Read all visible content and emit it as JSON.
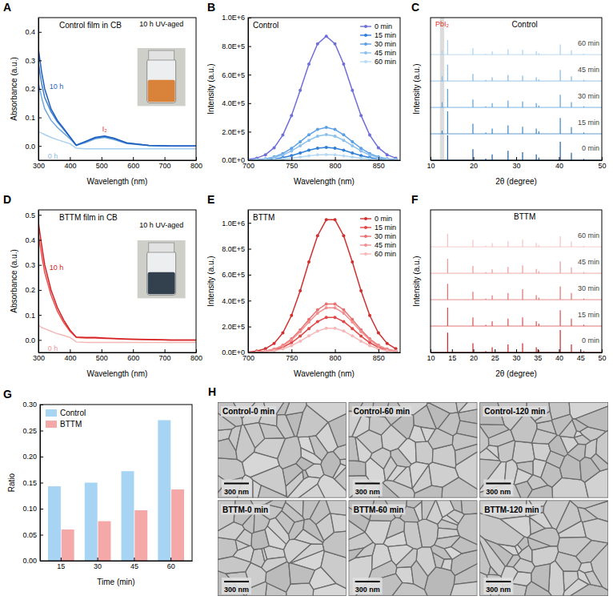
{
  "chart_data": [
    {
      "panel": "A",
      "type": "line",
      "title": "Control film in CB",
      "x_label": "Wavelength (nm)",
      "y_label": "Absorbance (a.u.)",
      "x": [
        300,
        310,
        320,
        340,
        360,
        380,
        400,
        420,
        450,
        480,
        510,
        540,
        580,
        650,
        720,
        800
      ],
      "xlim": [
        300,
        800
      ],
      "xticks": [
        300,
        400,
        500,
        600,
        700,
        800
      ],
      "ylim": [
        -0.05,
        0.45
      ],
      "yticks": [
        {
          "value": 0,
          "label": "0.0"
        },
        0.1,
        0.2,
        0.3,
        0.4
      ],
      "series": [
        {
          "color": "#a9cfee",
          "values": [
            0.05,
            0.045,
            0.04,
            0.03,
            0.022,
            0.015,
            0.008,
            -0.008,
            -0.01,
            -0.01,
            -0.01,
            -0.01,
            -0.01,
            -0.01,
            -0.01,
            -0.01
          ]
        },
        {
          "color": "#6fa8dc",
          "values": [
            0.22,
            0.17,
            0.13,
            0.09,
            0.065,
            0.045,
            0.025,
            0.002,
            0.012,
            0.025,
            0.03,
            0.022,
            0.008,
            0.001,
            0,
            0
          ]
        },
        {
          "color": "#3d7fd0",
          "values": [
            0.29,
            0.22,
            0.17,
            0.12,
            0.085,
            0.058,
            0.03,
            0.002,
            0.015,
            0.028,
            0.033,
            0.025,
            0.01,
            0.002,
            0,
            0
          ]
        },
        {
          "color": "#1f5fbf",
          "values": [
            0.34,
            0.26,
            0.2,
            0.13,
            0.09,
            0.062,
            0.032,
            0.003,
            0.016,
            0.03,
            0.035,
            0.027,
            0.011,
            0.002,
            0,
            0
          ]
        }
      ],
      "annotations": [
        {
          "text": "10 h",
          "x": 335,
          "y": 0.2,
          "color": "#1f5fbf"
        },
        {
          "text": "0 h",
          "x": 330,
          "y": -0.045,
          "color": "#8fbde6"
        },
        {
          "text": "I₂",
          "x": 510,
          "y": 0.05,
          "color": "#e03030"
        },
        {
          "text": "10 h UV-aged",
          "x": 690,
          "y": 0.42,
          "color": "#000000"
        }
      ]
    },
    {
      "panel": "B",
      "type": "line",
      "title": "Control",
      "x_label": "Wavelength (nm)",
      "y_label": "Intensity (a.u.)",
      "x": [
        700,
        710,
        720,
        730,
        740,
        750,
        760,
        770,
        780,
        790,
        800,
        810,
        820,
        830,
        840,
        850,
        860,
        870
      ],
      "xlim": [
        700,
        875
      ],
      "xticks": [
        700,
        750,
        800,
        850
      ],
      "ylim": [
        0,
        1000000
      ],
      "yticks": [
        {
          "value": 0,
          "label": "0.0E+0"
        },
        {
          "value": 200000,
          "label": "2.0E+5"
        },
        {
          "value": 400000,
          "label": "4.0E+5"
        },
        {
          "value": 600000,
          "label": "6.0E+5"
        },
        {
          "value": 800000,
          "label": "8.0E+5"
        },
        {
          "value": 1000000,
          "label": "1.0E+6"
        }
      ],
      "marker": "circle",
      "legend": "upper right",
      "series": [
        {
          "name": "0 min",
          "color": "#6f6fd8",
          "values": [
            5000,
            14700,
            38300,
            87600,
            176600,
            313600,
            489800,
            674300,
            816100,
            870000,
            816100,
            674300,
            489800,
            313600,
            176600,
            87600,
            38300,
            14700
          ]
        },
        {
          "name": "15 min",
          "color": "#2f7fd8",
          "values": [
            500,
            1500,
            4000,
            9100,
            18300,
            32400,
            50700,
            69800,
            84400,
            90000,
            84400,
            69800,
            50700,
            32400,
            18300,
            9100,
            4000,
            1500
          ]
        },
        {
          "name": "30 min",
          "color": "#5aa0e6",
          "values": [
            1300,
            3900,
            10100,
            23200,
            46700,
            82900,
            129500,
            178300,
            215700,
            230000,
            215700,
            178300,
            129500,
            82900,
            46700,
            23200,
            10100,
            3900
          ]
        },
        {
          "name": "45 min",
          "color": "#8cc0ee",
          "values": [
            1000,
            3000,
            7900,
            18100,
            36500,
            64900,
            101300,
            139500,
            168800,
            180000,
            168800,
            139500,
            101300,
            64900,
            36500,
            18100,
            7900,
            3000
          ]
        },
        {
          "name": "60 min",
          "color": "#b8daf4",
          "values": [
            200,
            700,
            1800,
            4000,
            8100,
            14400,
            22500,
            31000,
            37500,
            40000,
            37500,
            31000,
            22500,
            14400,
            8100,
            4000,
            1800,
            700
          ]
        }
      ]
    },
    {
      "panel": "C",
      "type": "stick",
      "title": "Control",
      "x_label": "2θ (degree)",
      "y_label": "Intensity (a.u.)",
      "tick_labels": "x",
      "x": [
        12.7,
        14.0,
        19.9,
        22.9,
        24.4,
        28.1,
        31.5,
        34.7,
        35.3,
        40.3,
        42.9,
        45.8
      ],
      "xlim": [
        10,
        50
      ],
      "xticks": [
        10,
        20,
        30,
        40,
        50
      ],
      "ylim": [
        0,
        5.4
      ],
      "series": [
        {
          "name": "0 min",
          "color": "#1f5f9f",
          "offset": 0,
          "values": [
            0,
            0.95,
            0.42,
            0.06,
            0.22,
            0.36,
            0.3,
            0.22,
            0.1,
            0.7,
            0.28,
            0.05
          ]
        },
        {
          "name": "15 min",
          "color": "#3a84c4",
          "offset": 1,
          "values": [
            0.12,
            0.85,
            0.38,
            0.05,
            0.2,
            0.32,
            0.27,
            0.2,
            0.09,
            0.6,
            0.25,
            0.05
          ]
        },
        {
          "name": "30 min",
          "color": "#5aa0d8",
          "offset": 2,
          "values": [
            0.2,
            0.7,
            0.3,
            0.04,
            0.16,
            0.26,
            0.22,
            0.16,
            0.07,
            0.48,
            0.2,
            0.04
          ]
        },
        {
          "name": "45 min",
          "color": "#7fb8e4",
          "offset": 3,
          "values": [
            0.18,
            0.62,
            0.27,
            0.04,
            0.14,
            0.23,
            0.2,
            0.14,
            0.06,
            0.42,
            0.18,
            0.04
          ]
        },
        {
          "name": "60 min",
          "color": "#a8d0ee",
          "offset": 4,
          "values": [
            0.15,
            0.55,
            0.24,
            0.03,
            0.12,
            0.2,
            0.18,
            0.13,
            0.05,
            0.38,
            0.16,
            0.03
          ]
        }
      ],
      "annotations": [
        {
          "text": "PbI₂",
          "x": 12.7,
          "band": [
            12.2,
            13.2
          ],
          "color": "#e03030"
        }
      ]
    },
    {
      "panel": "D",
      "type": "line",
      "title": "BTTM film in CB",
      "x_label": "Wavelength (nm)",
      "y_label": "Absorbance (a.u.)",
      "x": [
        300,
        310,
        320,
        340,
        360,
        380,
        400,
        420,
        450,
        480,
        510,
        540,
        580,
        650,
        720,
        800
      ],
      "xlim": [
        300,
        800
      ],
      "xticks": [
        300,
        400,
        500,
        600,
        700,
        800
      ],
      "ylim": [
        -0.05,
        0.52
      ],
      "yticks": [
        {
          "value": 0,
          "label": "0.0"
        },
        0.1,
        0.2,
        0.3,
        0.4,
        0.5
      ],
      "series": [
        {
          "color": "#f4b8b8",
          "values": [
            0.06,
            0.05,
            0.045,
            0.035,
            0.025,
            0.018,
            0.01,
            -0.008,
            -0.01,
            -0.01,
            -0.01,
            -0.01,
            -0.01,
            -0.01,
            -0.01,
            -0.01
          ]
        },
        {
          "color": "#e85050",
          "values": [
            0.42,
            0.34,
            0.27,
            0.18,
            0.115,
            0.07,
            0.035,
            0.01,
            0.008,
            0.008,
            0.006,
            0.005,
            0.003,
            0.001,
            0,
            0
          ]
        },
        {
          "color": "#d42020",
          "values": [
            0.47,
            0.38,
            0.3,
            0.2,
            0.13,
            0.08,
            0.04,
            0.012,
            0.01,
            0.01,
            0.008,
            0.006,
            0.004,
            0.002,
            0,
            0
          ]
        }
      ],
      "annotations": [
        {
          "text": "10 h",
          "x": 335,
          "y": 0.28,
          "color": "#d42020"
        },
        {
          "text": "0 h",
          "x": 330,
          "y": -0.045,
          "color": "#ec9a9a"
        },
        {
          "text": "10 h UV-aged",
          "x": 690,
          "y": 0.45,
          "color": "#000000"
        }
      ]
    },
    {
      "panel": "E",
      "type": "line",
      "title": "BTTM",
      "x_label": "Wavelength (nm)",
      "y_label": "Intensity (a.u.)",
      "x": [
        700,
        710,
        720,
        730,
        740,
        750,
        760,
        770,
        780,
        790,
        800,
        810,
        820,
        830,
        840,
        850,
        860,
        870
      ],
      "xlim": [
        700,
        875
      ],
      "xticks": [
        700,
        750,
        800,
        850
      ],
      "ylim": [
        0,
        1100000
      ],
      "yticks": [
        {
          "value": 0,
          "label": "0.0E+0"
        },
        {
          "value": 200000,
          "label": "2.0E+5"
        },
        {
          "value": 400000,
          "label": "4.0E+5"
        },
        {
          "value": 600000,
          "label": "6.0E+5"
        },
        {
          "value": 800000,
          "label": "8.0E+5"
        },
        {
          "value": 1000000,
          "label": "1.0E+6"
        }
      ],
      "marker": "circle",
      "legend": "upper right",
      "series": [
        {
          "name": "0 min",
          "color": "#d03030",
          "values": [
            3300,
            10400,
            28800,
            70200,
            151100,
            286000,
            476300,
            697800,
            901000,
            1023600,
            1023600,
            901000,
            697800,
            476300,
            286000,
            151100,
            70200,
            28800
          ]
        },
        {
          "name": "15 min",
          "color": "#e04848",
          "values": [
            900,
            2700,
            7600,
            18600,
            40000,
            75600,
            126000,
            184500,
            238200,
            270700,
            270700,
            238200,
            184500,
            126000,
            75600,
            40000,
            18600,
            7600
          ]
        },
        {
          "name": "30 min",
          "color": "#e87070",
          "values": [
            1200,
            3800,
            10500,
            25700,
            55200,
            104500,
            174000,
            255000,
            329200,
            374000,
            374000,
            329200,
            255000,
            174000,
            104500,
            55200,
            25700,
            10500
          ]
        },
        {
          "name": "45 min",
          "color": "#f09090",
          "values": [
            1100,
            3500,
            9700,
            23600,
            50900,
            96300,
            160300,
            234900,
            303200,
            344500,
            344500,
            303200,
            234900,
            160300,
            96300,
            50900,
            23600,
            9700
          ]
        },
        {
          "name": "60 min",
          "color": "#f6b8b8",
          "values": [
            600,
            1900,
            5300,
            12800,
            27600,
            52300,
            87000,
            127500,
            164600,
            187000,
            187000,
            164600,
            127500,
            87000,
            52300,
            27600,
            12800,
            5300
          ]
        }
      ]
    },
    {
      "panel": "F",
      "type": "stick",
      "title": "BTTM",
      "x_label": "2θ (degree)",
      "y_label": "Intensity (a.u.)",
      "tick_labels": "x",
      "x": [
        14.0,
        19.9,
        22.9,
        24.4,
        28.1,
        31.5,
        34.7,
        35.3,
        40.3,
        42.9,
        45.8
      ],
      "xlim": [
        10,
        50
      ],
      "xticks": [
        10,
        15,
        20,
        25,
        30,
        35,
        40,
        45,
        50
      ],
      "ylim": [
        0,
        5.4
      ],
      "series": [
        {
          "name": "0 min",
          "color": "#c82828",
          "offset": 0,
          "values": [
            0.75,
            0.35,
            0.05,
            0.2,
            0.3,
            0.35,
            0.2,
            0.1,
            0.85,
            0.3,
            0.05
          ]
        },
        {
          "name": "15 min",
          "color": "#d85050",
          "offset": 1,
          "values": [
            0.7,
            0.33,
            0.05,
            0.18,
            0.28,
            0.33,
            0.18,
            0.09,
            0.6,
            0.28,
            0.05
          ]
        },
        {
          "name": "30 min",
          "color": "#e07070",
          "offset": 2,
          "values": [
            0.6,
            0.3,
            0.04,
            0.16,
            0.25,
            0.4,
            0.17,
            0.08,
            0.5,
            0.25,
            0.04
          ]
        },
        {
          "name": "45 min",
          "color": "#ea9898",
          "offset": 3,
          "values": [
            0.55,
            0.28,
            0.04,
            0.15,
            0.24,
            0.3,
            0.16,
            0.08,
            0.45,
            0.22,
            0.04
          ]
        },
        {
          "name": "60 min",
          "color": "#f4c0c0",
          "offset": 4,
          "values": [
            0.5,
            0.26,
            0.04,
            0.14,
            0.22,
            0.28,
            0.15,
            0.07,
            0.4,
            0.2,
            0.04
          ]
        }
      ]
    },
    {
      "panel": "G",
      "type": "bar",
      "x_label": "Time (min)",
      "y_label": "Ratio",
      "categories": [
        "15",
        "30",
        "45",
        "60"
      ],
      "ylim": [
        0,
        0.3
      ],
      "yticks": [
        {
          "value": 0,
          "label": "0.00"
        },
        0.05,
        {
          "value": 0.1,
          "label": "0.10"
        },
        0.15,
        {
          "value": 0.2,
          "label": "0.20"
        },
        0.25,
        {
          "value": 0.3,
          "label": "0.30"
        }
      ],
      "legend": "upper left",
      "series": [
        {
          "name": "Control",
          "color": "#a8d4f4",
          "values": [
            0.143,
            0.15,
            0.172,
            0.27
          ]
        },
        {
          "name": "BTTM",
          "color": "#f4a8a8",
          "values": [
            0.06,
            0.076,
            0.097,
            0.137
          ]
        }
      ]
    },
    {
      "panel": "H",
      "type": "image_grid",
      "images": [
        {
          "label": "Control-0 min",
          "scale_bar": "300 nm"
        },
        {
          "label": "Control-60 min",
          "scale_bar": "300 nm"
        },
        {
          "label": "Control-120 min",
          "scale_bar": "300 nm"
        },
        {
          "label": "BTTM-0 min",
          "scale_bar": "300 nm"
        },
        {
          "label": "BTTM-60 min",
          "scale_bar": "300 nm"
        },
        {
          "label": "BTTM-120 min",
          "scale_bar": "300 nm"
        }
      ]
    }
  ]
}
